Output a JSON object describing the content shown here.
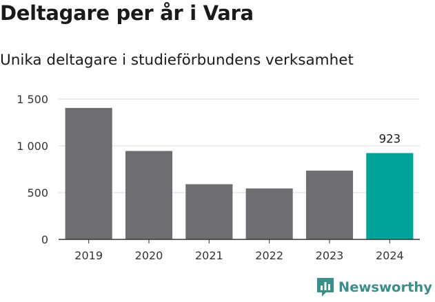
{
  "header": {
    "title": "Deltagare per år i Vara",
    "subtitle": "Unika deltagare i studieförbundens verksamhet"
  },
  "brand": {
    "name": "Newsworthy",
    "logo_icon": "newsworthy-chart-icon",
    "color": "#3a8f8a"
  },
  "colors": {
    "bar": "#6e6d72",
    "highlight": "#00a398",
    "grid": "#d9d9d9",
    "axis": "#333333"
  },
  "chart_data": {
    "type": "bar",
    "title": "Deltagare per år i Vara",
    "subtitle": "Unika deltagare i studieförbundens verksamhet",
    "xlabel": "",
    "ylabel": "",
    "categories": [
      "2019",
      "2020",
      "2021",
      "2022",
      "2023",
      "2024"
    ],
    "values": [
      1405,
      945,
      590,
      545,
      735,
      923
    ],
    "highlight_index": 5,
    "data_labels": [
      {
        "index": 5,
        "text": "923"
      }
    ],
    "ylim": [
      0,
      1500
    ],
    "yticks": [
      0,
      500,
      1000,
      1500
    ],
    "ytick_labels": [
      "0",
      "500",
      "1 000",
      "1 500"
    ],
    "grid": true,
    "legend": "none"
  }
}
